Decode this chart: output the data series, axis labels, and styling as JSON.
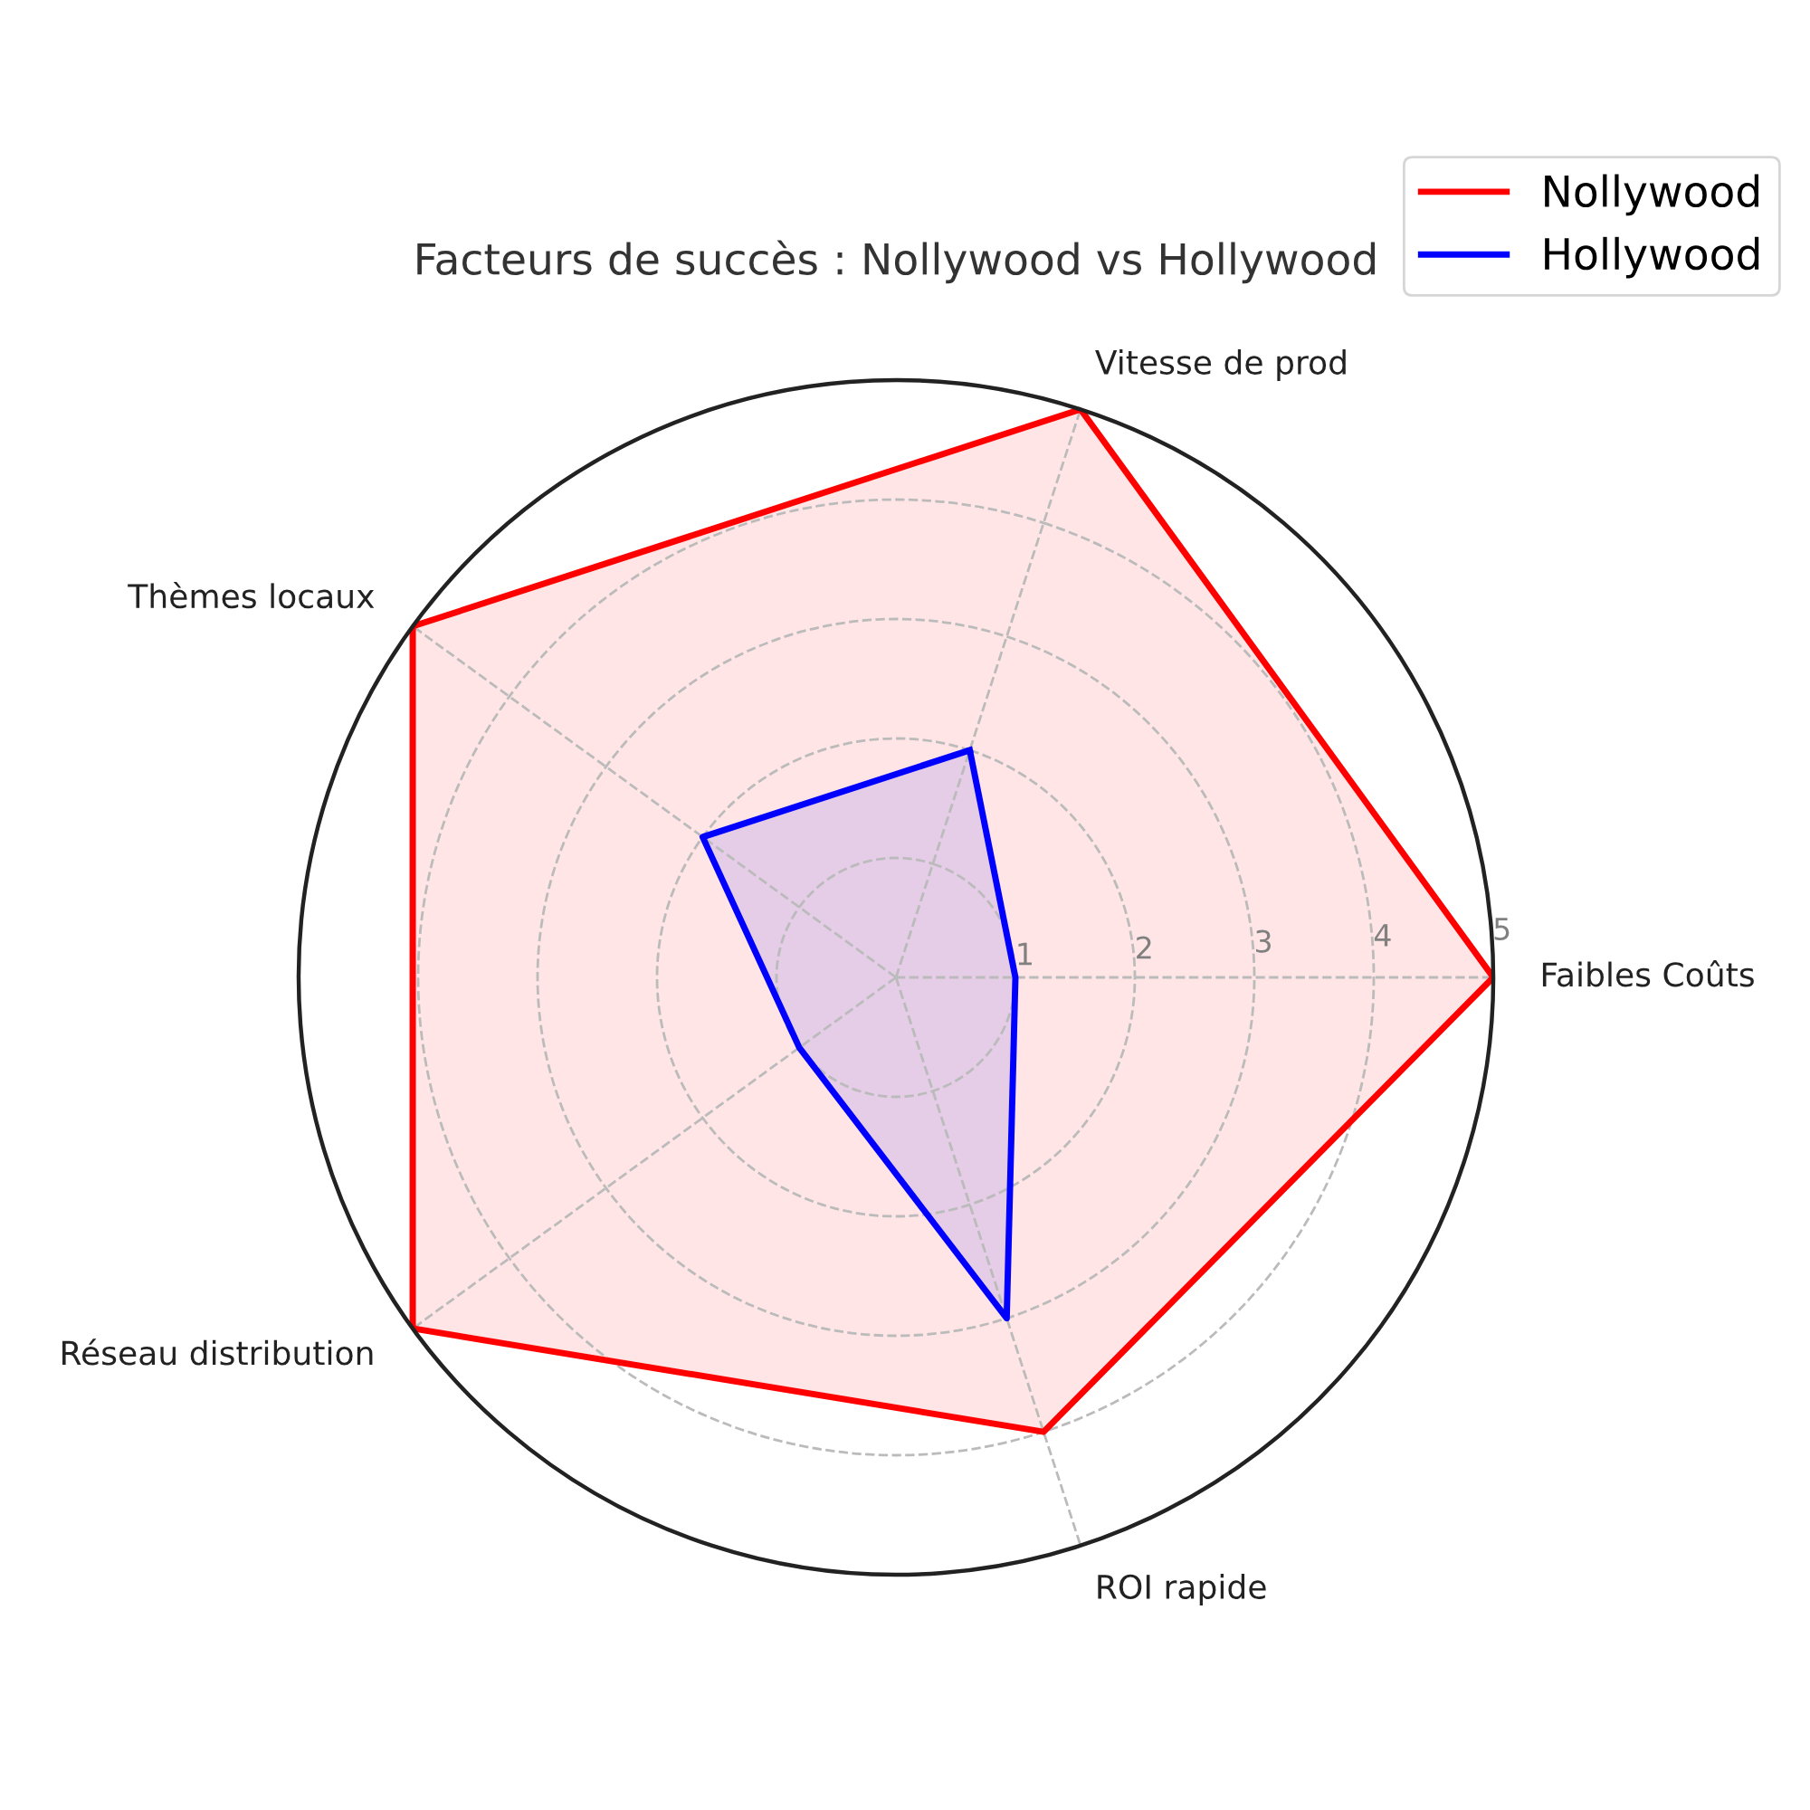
{
  "chart_data": {
    "type": "radar",
    "title": "Facteurs de succès : Nollywood vs Hollywood",
    "categories": [
      "Vitesse de prod",
      "Faibles Coûts",
      "ROI rapide",
      "Réseau distribution",
      "Thèmes locaux"
    ],
    "series": [
      {
        "name": "Nollywood",
        "color": "#ff0000",
        "values": [
          5,
          5,
          4,
          5,
          5
        ]
      },
      {
        "name": "Hollywood",
        "color": "#0000ff",
        "values": [
          2,
          1,
          3,
          1,
          2
        ]
      }
    ],
    "ylim": [
      0,
      5
    ],
    "yticks": [
      1,
      2,
      3,
      4,
      5
    ],
    "grid": true,
    "legend": "top right",
    "line_style": "solid",
    "marker": "none"
  }
}
